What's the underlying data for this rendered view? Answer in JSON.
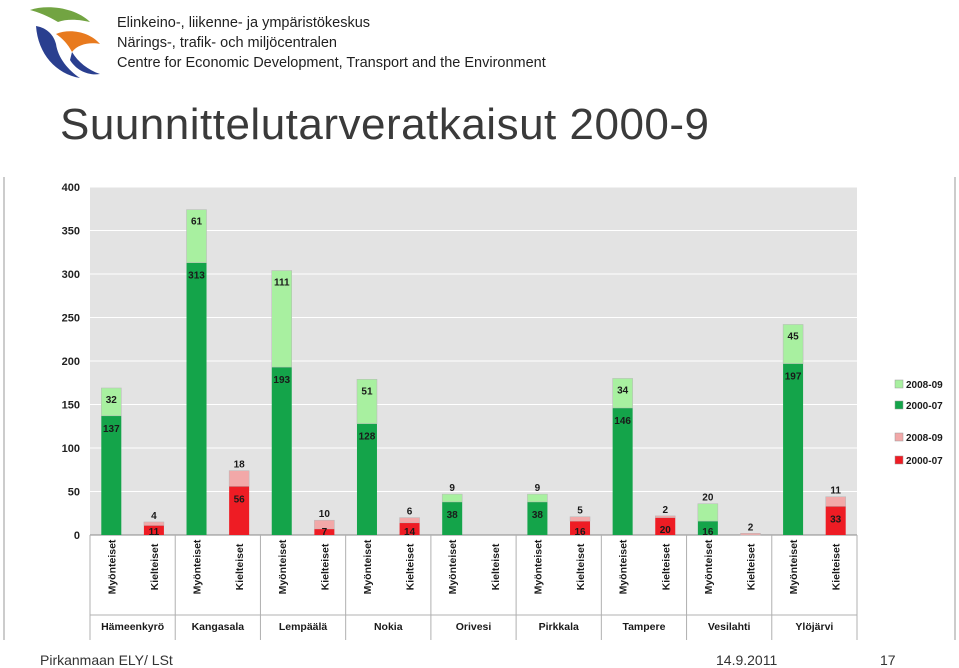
{
  "header": {
    "org_lines": [
      "Elinkeino-, liikenne- ja ympäristökeskus",
      "Närings-, trafik- och miljöcentralen",
      "Centre for Economic Development, Transport and the Environment"
    ],
    "title": "Suunnittelutarveratkaisut 2000-9"
  },
  "footer": {
    "left": "Pirkanmaan ELY/ LSt",
    "date": "14.9.2011",
    "page": "17"
  },
  "colors": {
    "green_dark": "#14a44a",
    "green_light": "#a8f0a0",
    "red_dark": "#ee1c24",
    "red_light": "#f2a8a8",
    "plot_bg": "#e3e3e3",
    "logo_navy": "#2a3f8f",
    "logo_green": "#72a442",
    "logo_orange": "#e87a1e"
  },
  "chart_data": {
    "type": "bar",
    "stacked": true,
    "ylim": [
      0,
      400
    ],
    "yticks": [
      0,
      50,
      100,
      150,
      200,
      250,
      300,
      350,
      400
    ],
    "grid": true,
    "bar_label": {
      "approved": "Myönteiset",
      "rejected": "Kielteiset"
    },
    "legend": {
      "approved": [
        "2008-09",
        "2000-07"
      ],
      "rejected": [
        "2008-09",
        "2000-07"
      ]
    },
    "municipalities": [
      {
        "name": "Hämeenkyrö",
        "approved": [
          137,
          32
        ],
        "rejected": [
          11,
          4
        ]
      },
      {
        "name": "Kangasala",
        "approved": [
          313,
          61
        ],
        "rejected": [
          56,
          18
        ]
      },
      {
        "name": "Lempäälä",
        "approved": [
          193,
          111
        ],
        "rejected": [
          7,
          10
        ]
      },
      {
        "name": "Nokia",
        "approved": [
          128,
          51
        ],
        "rejected": [
          14,
          6
        ]
      },
      {
        "name": "Orivesi",
        "approved": [
          38,
          9
        ],
        "rejected": [
          0,
          0
        ]
      },
      {
        "name": "Pirkkala",
        "approved": [
          38,
          9
        ],
        "rejected": [
          16,
          5
        ]
      },
      {
        "name": "Tampere",
        "approved": [
          146,
          34
        ],
        "rejected": [
          20,
          2
        ]
      },
      {
        "name": "Vesilahti",
        "approved": [
          16,
          20
        ],
        "rejected": [
          0,
          2
        ]
      },
      {
        "name": "Ylöjärvi",
        "approved": [
          197,
          45
        ],
        "rejected": [
          33,
          11
        ]
      }
    ],
    "value_labels": [
      [
        "137",
        "32",
        "11",
        "4"
      ],
      [
        "313",
        "61",
        "56",
        "18"
      ],
      [
        "193",
        "111",
        "7",
        "10"
      ],
      [
        "128",
        "51",
        "14",
        "6"
      ],
      [
        "38",
        "9",
        "",
        ""
      ],
      [
        "38",
        "9",
        "16",
        "5"
      ],
      [
        "146",
        "34",
        "20",
        "2"
      ],
      [
        "16",
        "20",
        "",
        "2"
      ],
      [
        "197",
        "45",
        "33",
        "11"
      ]
    ]
  }
}
